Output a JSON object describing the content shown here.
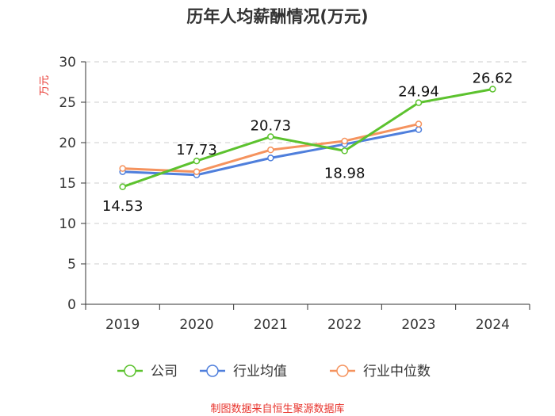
{
  "chart_data": {
    "type": "line",
    "title": "历年人均薪酬情况(万元)",
    "ylabel": "万元",
    "xlabel": "",
    "categories": [
      "2019",
      "2020",
      "2021",
      "2022",
      "2023",
      "2024"
    ],
    "ylim": [
      0,
      30
    ],
    "yticks": [
      0,
      5,
      10,
      15,
      20,
      25,
      30
    ],
    "grid": true,
    "legend_position": "bottom",
    "series": [
      {
        "name": "公司",
        "color": "#5cc22e",
        "values": [
          14.53,
          17.73,
          20.73,
          18.98,
          24.94,
          26.62
        ],
        "labels": [
          "14.53",
          "17.73",
          "20.73",
          "18.98",
          "24.94",
          "26.62"
        ]
      },
      {
        "name": "行业均值",
        "color": "#4f7fdc",
        "values": [
          16.4,
          16.0,
          18.1,
          19.8,
          21.6,
          null
        ]
      },
      {
        "name": "行业中位数",
        "color": "#f5935e",
        "values": [
          16.8,
          16.4,
          19.1,
          20.2,
          22.3,
          null
        ]
      }
    ],
    "source": "制图数据来自恒生聚源数据库"
  }
}
